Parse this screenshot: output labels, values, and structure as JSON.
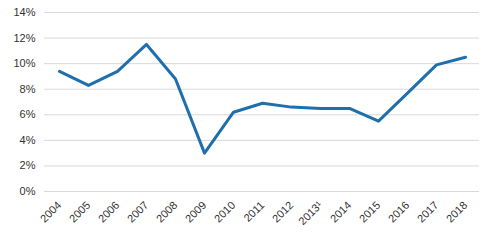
{
  "chart_data": {
    "type": "line",
    "categories": [
      "2004",
      "2005",
      "2006",
      "2007",
      "2008",
      "2009",
      "2010",
      "2011",
      "2012",
      "2013¹",
      "2014",
      "2015",
      "2016",
      "2017",
      "2018"
    ],
    "values": [
      9.4,
      8.3,
      9.4,
      11.5,
      8.8,
      3.0,
      6.2,
      6.9,
      6.6,
      6.5,
      6.5,
      5.5,
      7.7,
      9.9,
      10.5
    ],
    "color": "#1f6fad",
    "ylim": [
      0,
      14
    ],
    "yticks": [
      {
        "value": 0,
        "label": "0%"
      },
      {
        "value": 2,
        "label": "2%"
      },
      {
        "value": 4,
        "label": "4%"
      },
      {
        "value": 6,
        "label": "6%"
      },
      {
        "value": 8,
        "label": "8%"
      },
      {
        "value": 10,
        "label": "10%"
      },
      {
        "value": 12,
        "label": "12%"
      },
      {
        "value": 14,
        "label": "14%"
      }
    ],
    "grid": true
  }
}
